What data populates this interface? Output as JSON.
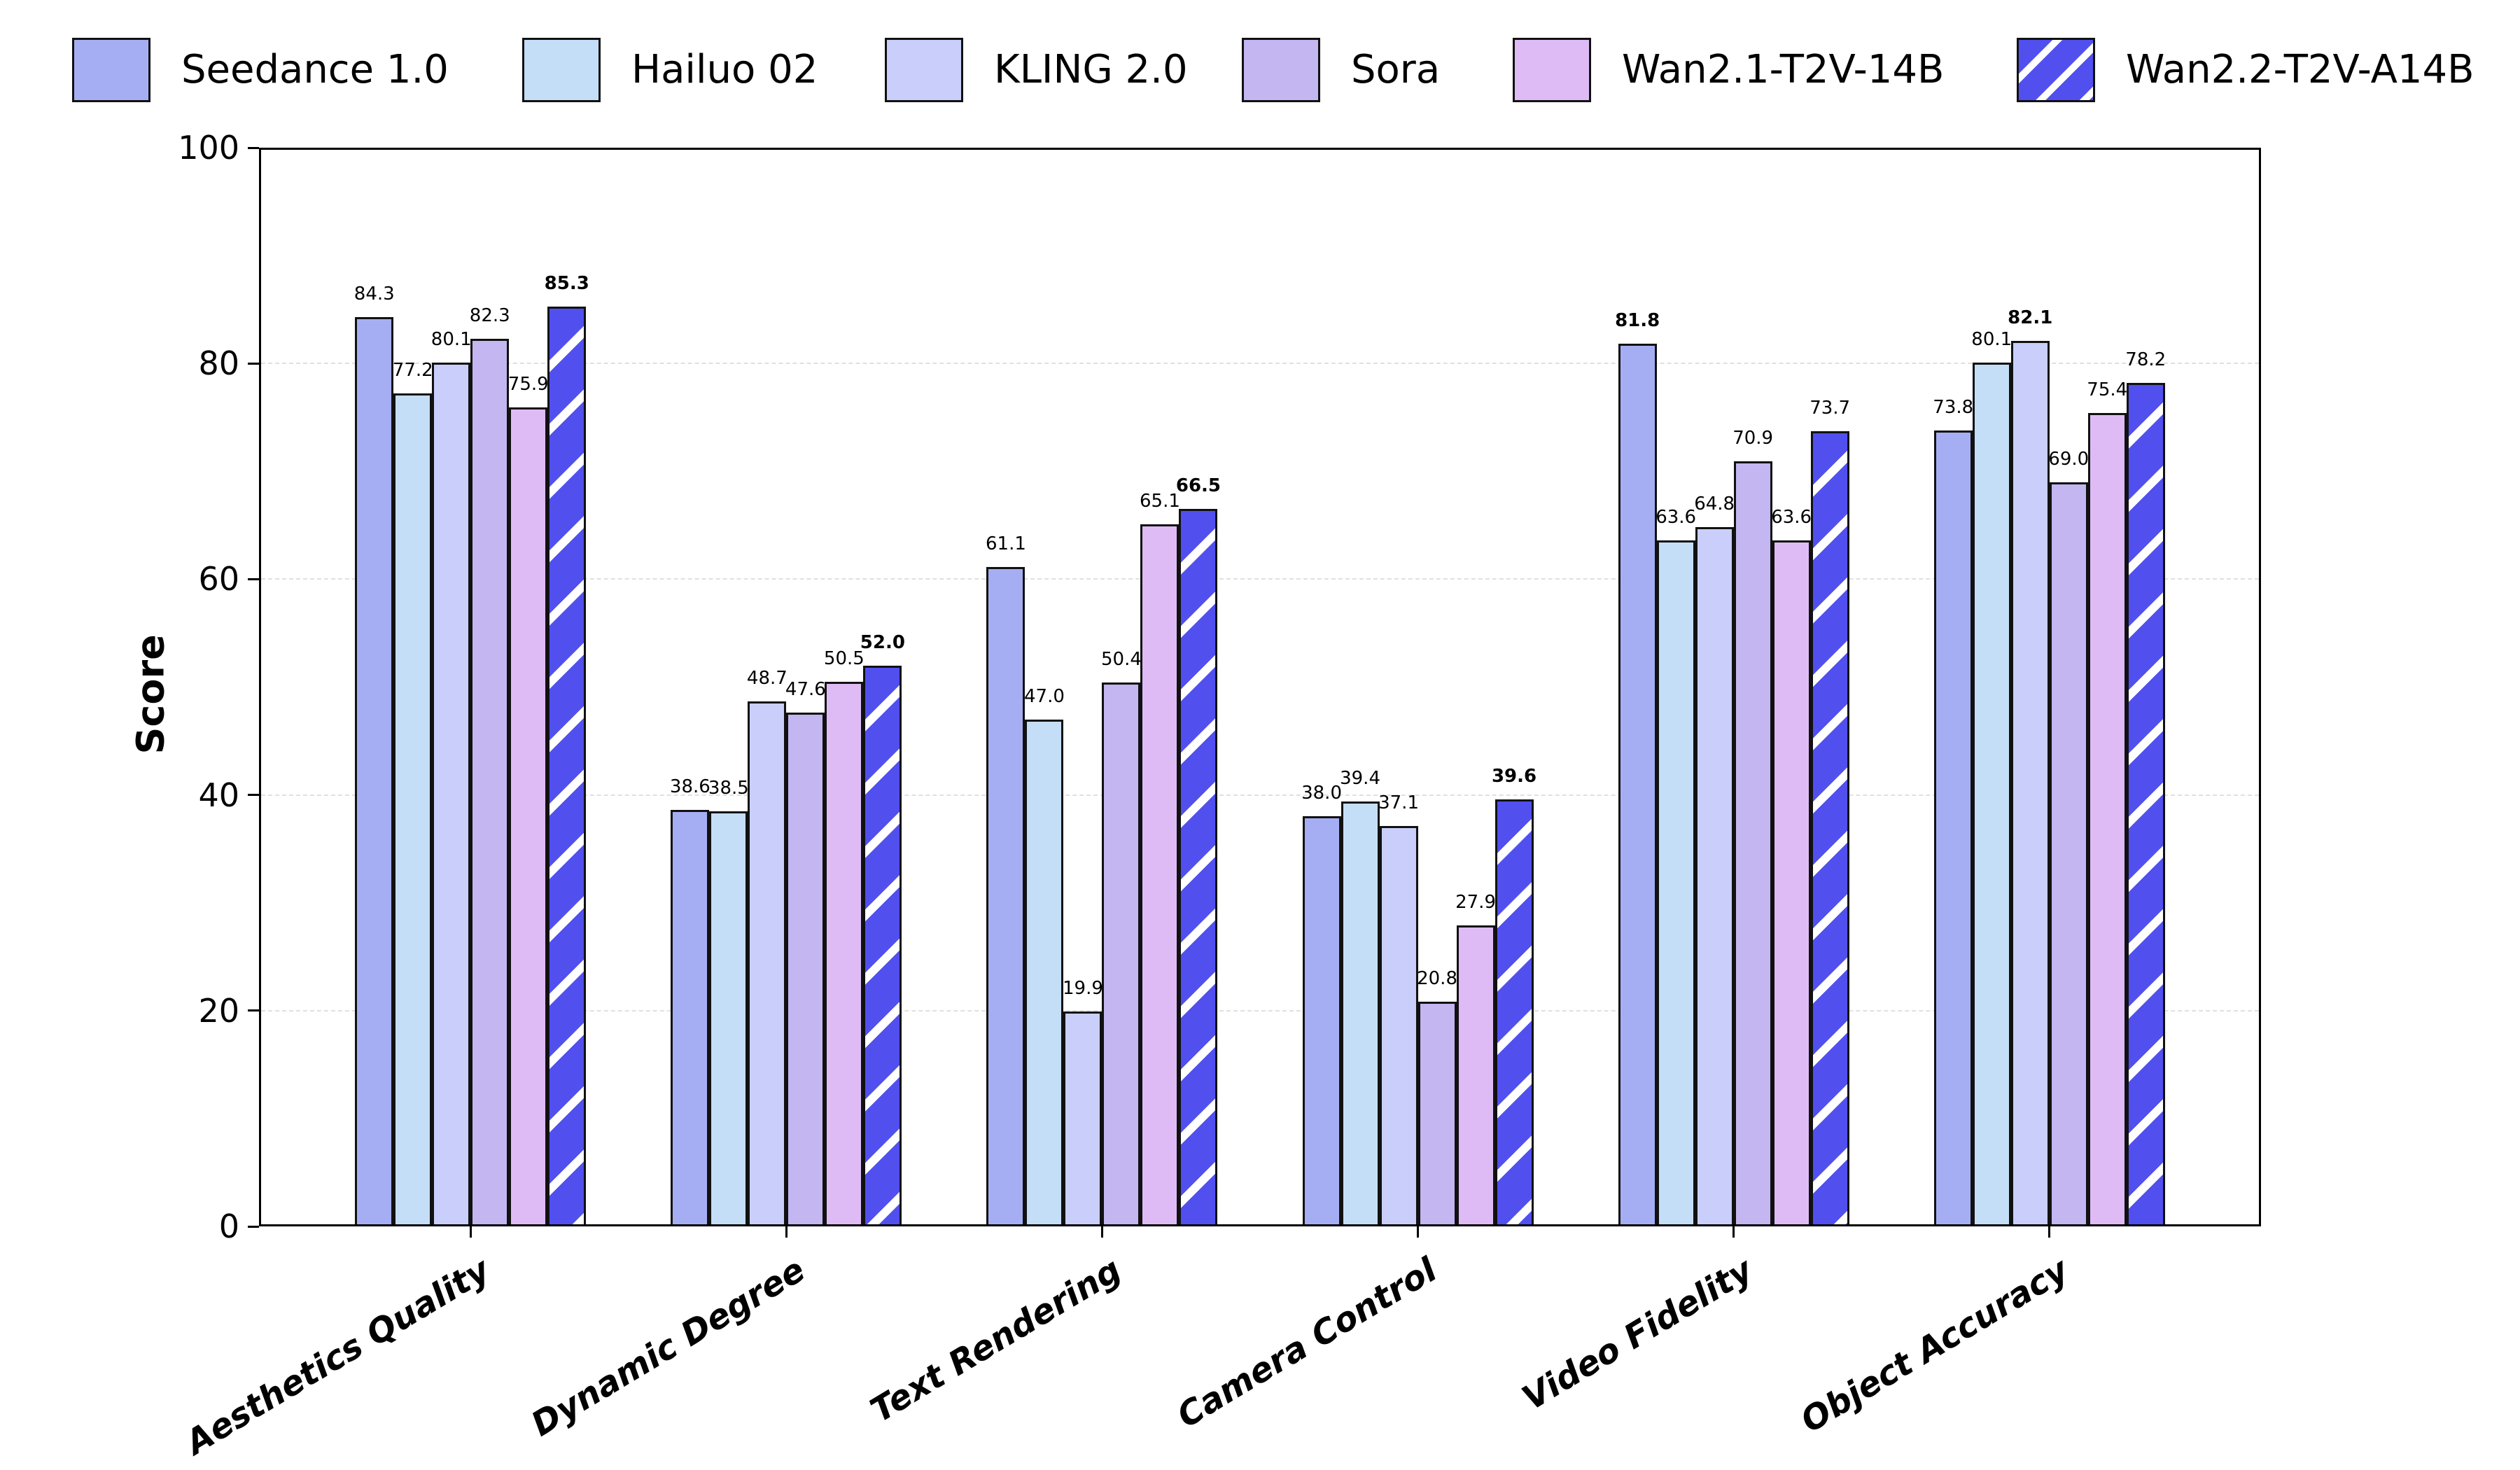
{
  "chart_data": {
    "type": "bar",
    "title": "",
    "ylabel": "Score",
    "ylim": [
      0,
      100
    ],
    "yticks": [
      0,
      20,
      40,
      60,
      80,
      100
    ],
    "grid": "horizontal-dashed-at-20-40-60-80",
    "legend_position": "top-row",
    "categories": [
      "Aesthetics Quality",
      "Dynamic Degree",
      "Text Rendering",
      "Camera Control",
      "Video Fidelity",
      "Object Accuracy"
    ],
    "series": [
      {
        "name": "Seedance 1.0",
        "color": "#a6aef3",
        "hatch": "none",
        "values": [
          84.3,
          38.6,
          61.1,
          38.0,
          81.8,
          73.8
        ]
      },
      {
        "name": "Hailuo 02",
        "color": "#c5def8",
        "hatch": "none",
        "values": [
          77.2,
          38.5,
          47.0,
          39.4,
          63.6,
          80.1
        ]
      },
      {
        "name": "KLING 2.0",
        "color": "#c9cffa",
        "hatch": "none",
        "values": [
          80.1,
          48.7,
          19.9,
          37.1,
          64.8,
          82.1
        ]
      },
      {
        "name": "Sora",
        "color": "#c3b6f1",
        "hatch": "none",
        "values": [
          82.3,
          47.6,
          50.4,
          20.8,
          70.9,
          69.0
        ]
      },
      {
        "name": "Wan2.1-T2V-14B",
        "color": "#dfbbf6",
        "hatch": "none",
        "values": [
          75.9,
          50.5,
          65.1,
          27.9,
          63.6,
          75.4
        ]
      },
      {
        "name": "Wan2.2-T2V-A14B",
        "color": "#5150ef",
        "hatch": "/",
        "hatch_color": "#ffffff",
        "values": [
          85.3,
          52.0,
          66.5,
          39.6,
          73.7,
          78.2
        ]
      }
    ],
    "value_label_format": "one-decimal",
    "bold_value_per_category": [
      85.3,
      52.0,
      66.5,
      39.6,
      81.8,
      82.1
    ],
    "bar_edge_color": "#111111",
    "gridline_color": "#e0e0e0",
    "background_color": "#ffffff"
  }
}
